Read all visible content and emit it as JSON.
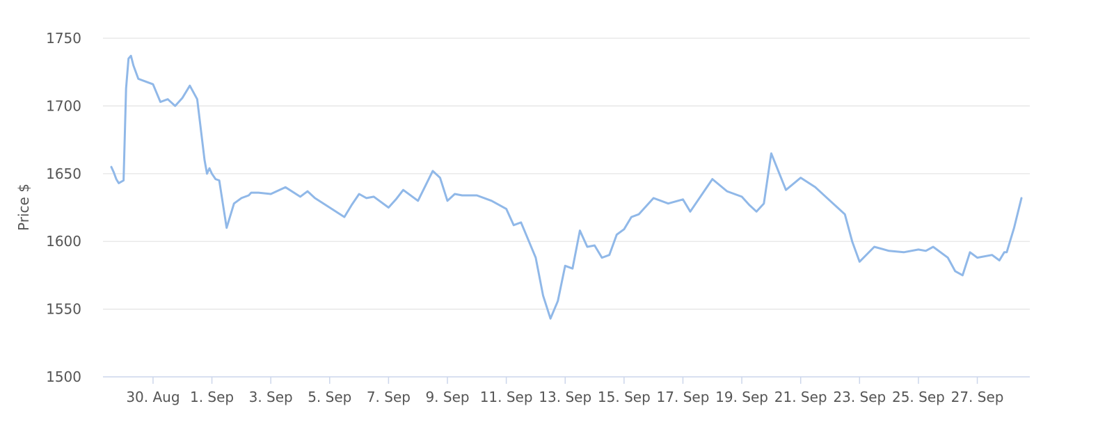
{
  "chart_data": {
    "type": "line",
    "title": "",
    "xlabel": "",
    "ylabel": "Price $",
    "ylim": [
      1500,
      1750
    ],
    "y_ticks": [
      "1500",
      "1550",
      "1600",
      "1650",
      "1700",
      "1750"
    ],
    "x_ticks": [
      "30. Aug",
      "1. Sep",
      "3. Sep",
      "5. Sep",
      "7. Sep",
      "9. Sep",
      "11. Sep",
      "13. Sep",
      "15. Sep",
      "17. Sep",
      "19. Sep",
      "21. Sep",
      "23. Sep",
      "25. Sep",
      "27. Sep"
    ],
    "x_range": [
      "2020-08-28T14:00",
      "2020-09-28T12:00"
    ],
    "grid": true,
    "legend": "none",
    "series_color": "#90b8e8",
    "series": [
      {
        "x": [
          "2020-08-28T14:00",
          "2020-08-28T16:00",
          "2020-08-28T18:00",
          "2020-08-28T20:00",
          "2020-08-29T00:00",
          "2020-08-29T02:00",
          "2020-08-29T04:00",
          "2020-08-29T06:00",
          "2020-08-29T08:00",
          "2020-08-29T12:00",
          "2020-08-29T18:00",
          "2020-08-30T00:00",
          "2020-08-30T06:00",
          "2020-08-30T12:00",
          "2020-08-30T18:00",
          "2020-08-31T00:00",
          "2020-08-31T06:00",
          "2020-08-31T12:00",
          "2020-08-31T18:00",
          "2020-08-31T20:00",
          "2020-08-31T22:00",
          "2020-09-01T00:00",
          "2020-09-01T03:00",
          "2020-09-01T06:00",
          "2020-09-01T12:00",
          "2020-09-01T18:00",
          "2020-09-02T00:00",
          "2020-09-02T06:00",
          "2020-09-02T08:00",
          "2020-09-02T14:00",
          "2020-09-03T00:00",
          "2020-09-03T12:00",
          "2020-09-04T00:00",
          "2020-09-04T06:00",
          "2020-09-04T12:00",
          "2020-09-05T00:00",
          "2020-09-05T12:00",
          "2020-09-05T18:00",
          "2020-09-06T00:00",
          "2020-09-06T06:00",
          "2020-09-06T12:00",
          "2020-09-07T00:00",
          "2020-09-07T06:00",
          "2020-09-07T12:00",
          "2020-09-08T00:00",
          "2020-09-08T12:00",
          "2020-09-08T18:00",
          "2020-09-09T00:00",
          "2020-09-09T06:00",
          "2020-09-09T12:00",
          "2020-09-10T00:00",
          "2020-09-10T12:00",
          "2020-09-11T00:00",
          "2020-09-11T06:00",
          "2020-09-11T12:00",
          "2020-09-12T00:00",
          "2020-09-12T06:00",
          "2020-09-12T12:00",
          "2020-09-12T18:00",
          "2020-09-13T00:00",
          "2020-09-13T06:00",
          "2020-09-13T12:00",
          "2020-09-13T18:00",
          "2020-09-14T00:00",
          "2020-09-14T06:00",
          "2020-09-14T12:00",
          "2020-09-14T18:00",
          "2020-09-15T00:00",
          "2020-09-15T06:00",
          "2020-09-15T12:00",
          "2020-09-16T00:00",
          "2020-09-16T12:00",
          "2020-09-17T00:00",
          "2020-09-17T06:00",
          "2020-09-18T00:00",
          "2020-09-18T12:00",
          "2020-09-19T00:00",
          "2020-09-19T06:00",
          "2020-09-19T12:00",
          "2020-09-19T18:00",
          "2020-09-20T00:00",
          "2020-09-20T12:00",
          "2020-09-21T00:00",
          "2020-09-21T12:00",
          "2020-09-22T00:00",
          "2020-09-22T06:00",
          "2020-09-22T12:00",
          "2020-09-22T18:00",
          "2020-09-23T00:00",
          "2020-09-23T12:00",
          "2020-09-24T00:00",
          "2020-09-24T12:00",
          "2020-09-25T00:00",
          "2020-09-25T06:00",
          "2020-09-25T12:00",
          "2020-09-26T00:00",
          "2020-09-26T06:00",
          "2020-09-26T12:00",
          "2020-09-26T18:00",
          "2020-09-27T00:00",
          "2020-09-27T12:00",
          "2020-09-27T18:00",
          "2020-09-27T22:00",
          "2020-09-28T00:00",
          "2020-09-28T06:00",
          "2020-09-28T12:00"
        ],
        "y": [
          1655,
          1651,
          1646,
          1643,
          1645,
          1713,
          1735,
          1737,
          1730,
          1720,
          1718,
          1716,
          1703,
          1705,
          1700,
          1706,
          1715,
          1705,
          1660,
          1650,
          1654,
          1650,
          1646,
          1645,
          1610,
          1628,
          1632,
          1634,
          1636,
          1636,
          1635,
          1640,
          1633,
          1637,
          1632,
          1625,
          1618,
          1627,
          1635,
          1632,
          1633,
          1625,
          1631,
          1638,
          1630,
          1652,
          1647,
          1630,
          1635,
          1634,
          1634,
          1630,
          1624,
          1612,
          1614,
          1588,
          1560,
          1543,
          1556,
          1582,
          1580,
          1608,
          1596,
          1597,
          1588,
          1590,
          1605,
          1609,
          1618,
          1620,
          1632,
          1628,
          1631,
          1622,
          1646,
          1637,
          1633,
          1627,
          1622,
          1628,
          1665,
          1638,
          1647,
          1640,
          1630,
          1625,
          1620,
          1600,
          1585,
          1596,
          1593,
          1592,
          1594,
          1593,
          1596,
          1588,
          1578,
          1575,
          1592,
          1588,
          1590,
          1586,
          1592,
          1592,
          1610,
          1632
        ]
      }
    ]
  }
}
